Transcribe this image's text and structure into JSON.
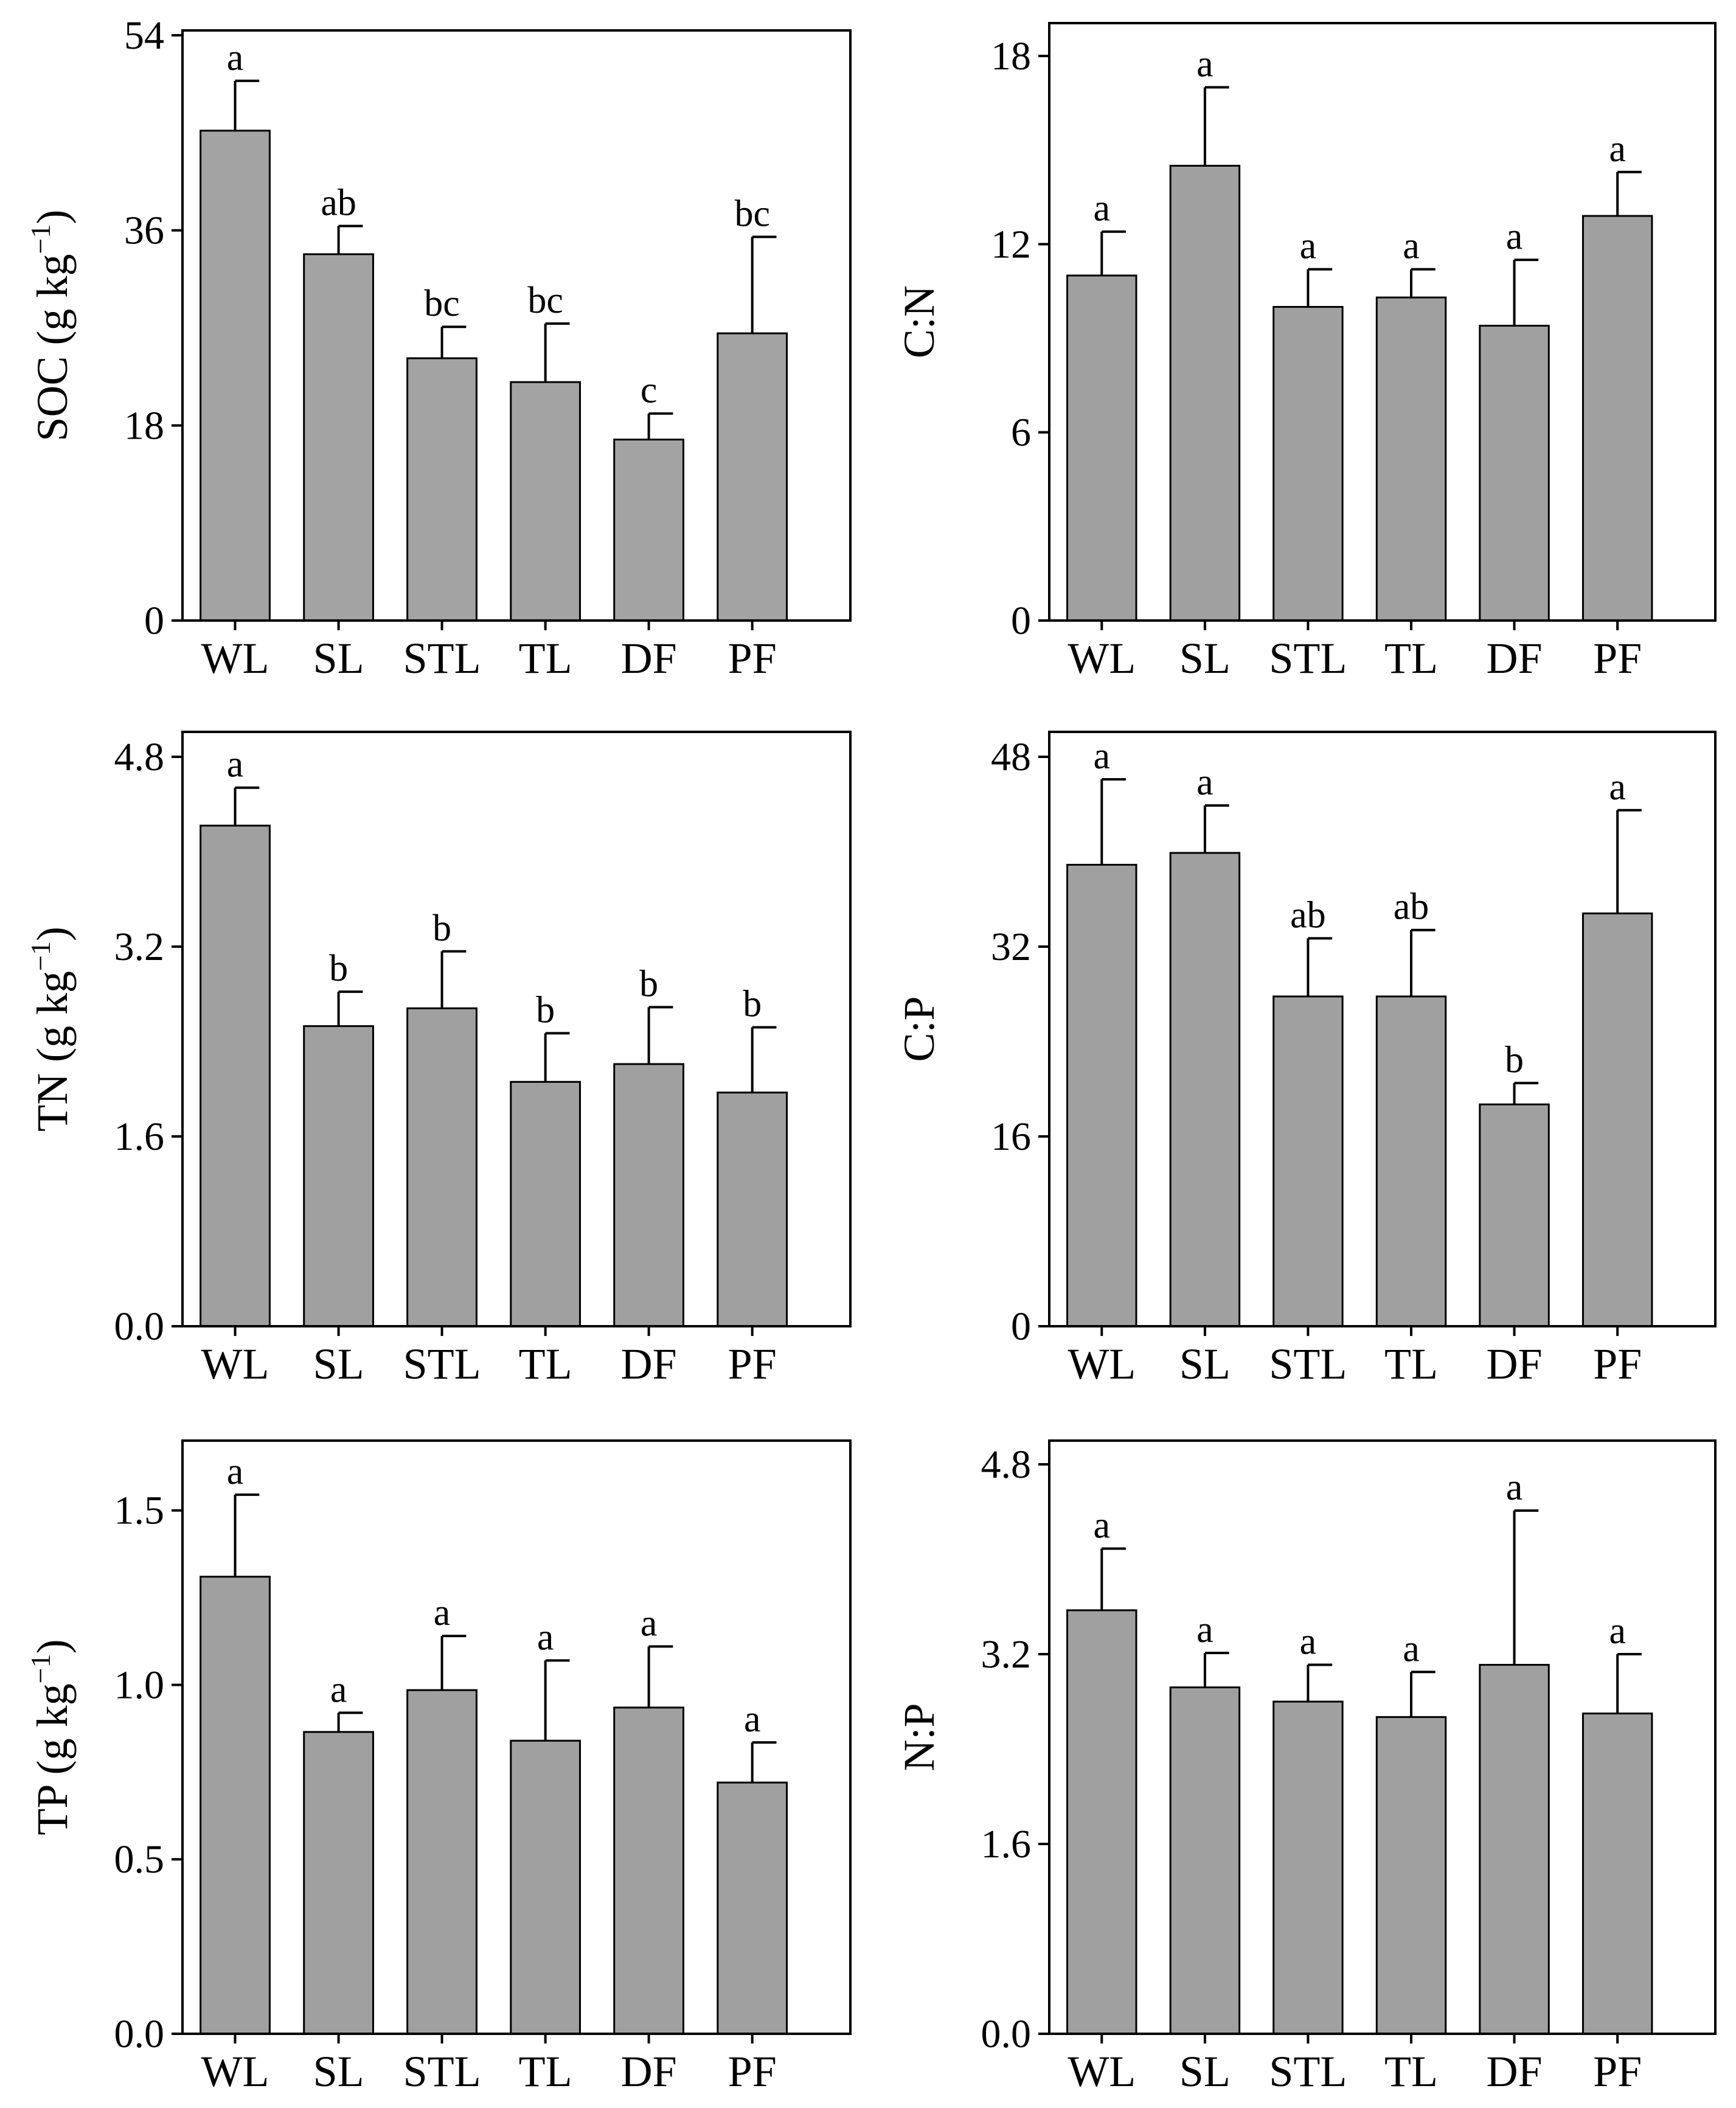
{
  "chart_data": [
    {
      "type": "bar",
      "panel": "top-left",
      "ylabel_main": "SOC (g kg",
      "ylabel_sup": "−1",
      "ylabel_close": ")",
      "categories": [
        "WL",
        "SL",
        "STL",
        "TL",
        "DF",
        "PF"
      ],
      "values": [
        45.2,
        33.8,
        24.2,
        22.0,
        16.7,
        26.5
      ],
      "errors": [
        4.6,
        2.6,
        2.9,
        5.4,
        2.4,
        8.9
      ],
      "letters": [
        "a",
        "ab",
        "bc",
        "bc",
        "c",
        "bc"
      ],
      "ylim": [
        0,
        54
      ],
      "yticks": [
        0,
        18,
        36,
        54
      ],
      "ytick_labels": [
        "0",
        "18",
        "36",
        "54"
      ],
      "bar_color": "#a3a3a3"
    },
    {
      "type": "bar",
      "panel": "top-right",
      "ylabel_main": "C:N",
      "ylabel_sup": "",
      "ylabel_close": "",
      "categories": [
        "WL",
        "SL",
        "STL",
        "TL",
        "DF",
        "PF"
      ],
      "values": [
        11.0,
        14.5,
        10.0,
        10.3,
        9.4,
        12.9
      ],
      "errors": [
        1.4,
        2.5,
        1.2,
        0.9,
        2.1,
        1.4
      ],
      "letters": [
        "a",
        "a",
        "a",
        "a",
        "a",
        "a"
      ],
      "ylim": [
        0,
        18
      ],
      "yticks": [
        0,
        6,
        12,
        18
      ],
      "ytick_labels": [
        "0",
        "6",
        "12",
        "18"
      ],
      "bar_color": "#a0a0a0"
    },
    {
      "type": "bar",
      "panel": "middle-left",
      "ylabel_main": "TN (g kg",
      "ylabel_sup": "−1",
      "ylabel_close": ")",
      "categories": [
        "WL",
        "SL",
        "STL",
        "TL",
        "DF",
        "PF"
      ],
      "values": [
        4.22,
        2.53,
        2.68,
        2.06,
        2.21,
        1.97
      ],
      "errors": [
        0.32,
        0.29,
        0.48,
        0.41,
        0.48,
        0.55
      ],
      "letters": [
        "a",
        "b",
        "b",
        "b",
        "b",
        "b"
      ],
      "ylim": [
        0,
        4.8
      ],
      "yticks": [
        0,
        1.6,
        3.2,
        4.8
      ],
      "ytick_labels": [
        "0.0",
        "1.6",
        "3.2",
        "4.8"
      ],
      "bar_color": "#a0a0a0"
    },
    {
      "type": "bar",
      "panel": "middle-right",
      "ylabel_main": "C:P",
      "ylabel_sup": "",
      "ylabel_close": "",
      "categories": [
        "WL",
        "SL",
        "STL",
        "TL",
        "DF",
        "PF"
      ],
      "values": [
        38.9,
        39.9,
        27.8,
        27.8,
        18.7,
        34.8
      ],
      "errors": [
        7.2,
        4.0,
        4.9,
        5.6,
        1.8,
        8.7
      ],
      "letters": [
        "a",
        "a",
        "ab",
        "ab",
        "b",
        "a"
      ],
      "ylim": [
        0,
        48
      ],
      "yticks": [
        0,
        16,
        32,
        48
      ],
      "ytick_labels": [
        "0",
        "16",
        "32",
        "48"
      ],
      "bar_color": "#a0a0a0"
    },
    {
      "type": "bar",
      "panel": "bottom-left",
      "ylabel_main": "TP (g kg",
      "ylabel_sup": "−1",
      "ylabel_close": ")",
      "categories": [
        "WL",
        "SL",
        "STL",
        "TL",
        "DF",
        "PF"
      ],
      "values": [
        1.31,
        0.865,
        0.985,
        0.84,
        0.935,
        0.72
      ],
      "errors": [
        0.235,
        0.055,
        0.155,
        0.23,
        0.175,
        0.115
      ],
      "letters": [
        "a",
        "a",
        "a",
        "a",
        "a",
        "a"
      ],
      "ylim": [
        0,
        1.7
      ],
      "yticks": [
        0,
        0.5,
        1.0,
        1.5
      ],
      "ytick_labels": [
        "0.0",
        "0.5",
        "1.0",
        "1.5"
      ],
      "bar_color": "#a0a0a0"
    },
    {
      "type": "bar",
      "panel": "bottom-right",
      "ylabel_main": "N:P",
      "ylabel_sup": "",
      "ylabel_close": "",
      "categories": [
        "WL",
        "SL",
        "STL",
        "TL",
        "DF",
        "PF"
      ],
      "values": [
        3.57,
        2.92,
        2.8,
        2.67,
        3.11,
        2.7
      ],
      "errors": [
        0.52,
        0.29,
        0.31,
        0.38,
        1.3,
        0.5
      ],
      "letters": [
        "a",
        "a",
        "a",
        "a",
        "a",
        "a"
      ],
      "ylim": [
        0,
        4.8
      ],
      "yticks": [
        0,
        1.6,
        3.2,
        4.8
      ],
      "ytick_labels": [
        "0.0",
        "1.6",
        "3.2",
        "4.8"
      ],
      "bar_color": "#a0a0a0"
    }
  ]
}
